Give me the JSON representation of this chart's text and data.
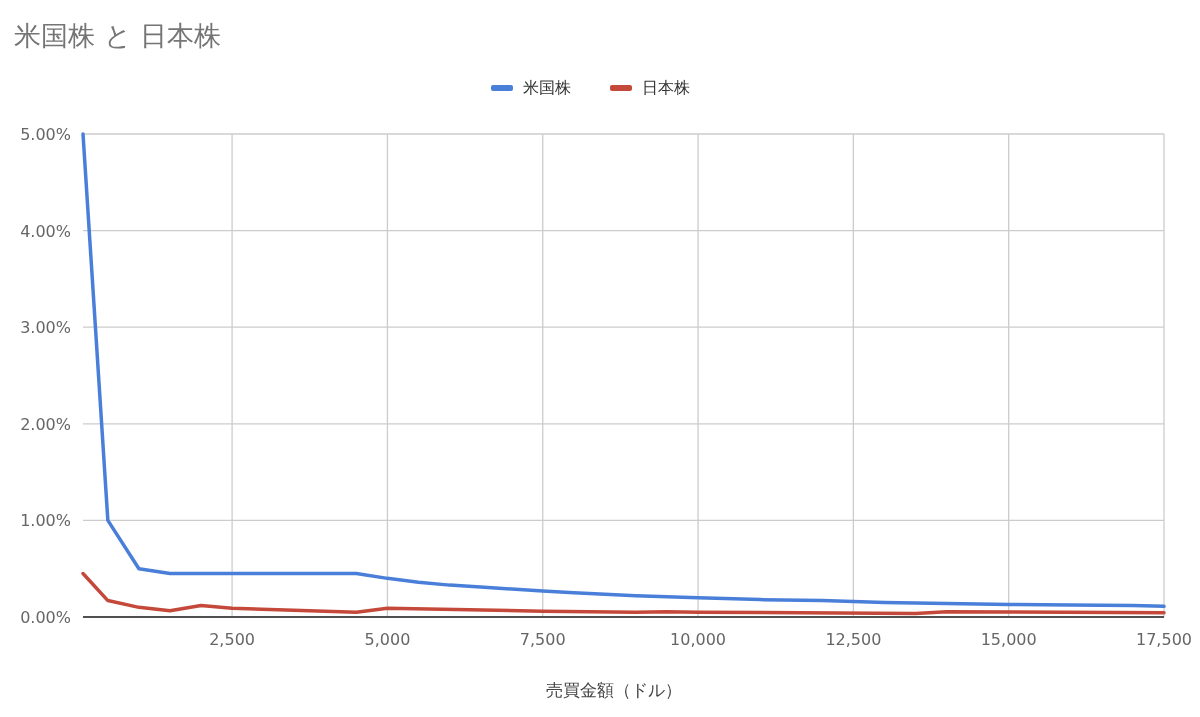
{
  "chart_data": {
    "type": "line",
    "title": "米国株 と 日本株",
    "xlabel": "売買金額（ドル）",
    "xlim": [
      100,
      17500
    ],
    "xticks": [
      {
        "value": 2500,
        "label": "2,500"
      },
      {
        "value": 5000,
        "label": "5,000"
      },
      {
        "value": 7500,
        "label": "7,500"
      },
      {
        "value": 10000,
        "label": "10,000"
      },
      {
        "value": 12500,
        "label": "12,500"
      },
      {
        "value": 15000,
        "label": "15,000"
      },
      {
        "value": 17500,
        "label": "17,500"
      }
    ],
    "ylim": [
      0,
      5
    ],
    "yticks": [
      {
        "value": 0,
        "label": "0.00%"
      },
      {
        "value": 1,
        "label": "1.00%"
      },
      {
        "value": 2,
        "label": "2.00%"
      },
      {
        "value": 3,
        "label": "3.00%"
      },
      {
        "value": 4,
        "label": "4.00%"
      },
      {
        "value": 5,
        "label": "5.00%"
      }
    ],
    "grid": true,
    "legend": "top",
    "series": [
      {
        "name": "米国株",
        "color": "#4a7fd9",
        "x": [
          100,
          500,
          1000,
          1500,
          4500,
          5000,
          5500,
          6000,
          6500,
          7000,
          7500,
          8000,
          9000,
          10000,
          11000,
          12000,
          13000,
          14000,
          15000,
          16000,
          17000,
          17500
        ],
        "values": [
          5.0,
          1.0,
          0.5,
          0.45,
          0.45,
          0.4,
          0.36,
          0.33,
          0.31,
          0.29,
          0.27,
          0.25,
          0.22,
          0.2,
          0.18,
          0.17,
          0.15,
          0.14,
          0.13,
          0.125,
          0.12,
          0.11
        ]
      },
      {
        "name": "日本株",
        "color": "#c5493a",
        "x": [
          100,
          500,
          1000,
          1500,
          2000,
          2500,
          4500,
          5000,
          7500,
          9000,
          9500,
          10000,
          13500,
          14000,
          17500
        ],
        "values": [
          0.45,
          0.17,
          0.1,
          0.065,
          0.12,
          0.09,
          0.05,
          0.09,
          0.06,
          0.05,
          0.055,
          0.05,
          0.035,
          0.055,
          0.045
        ]
      }
    ]
  }
}
